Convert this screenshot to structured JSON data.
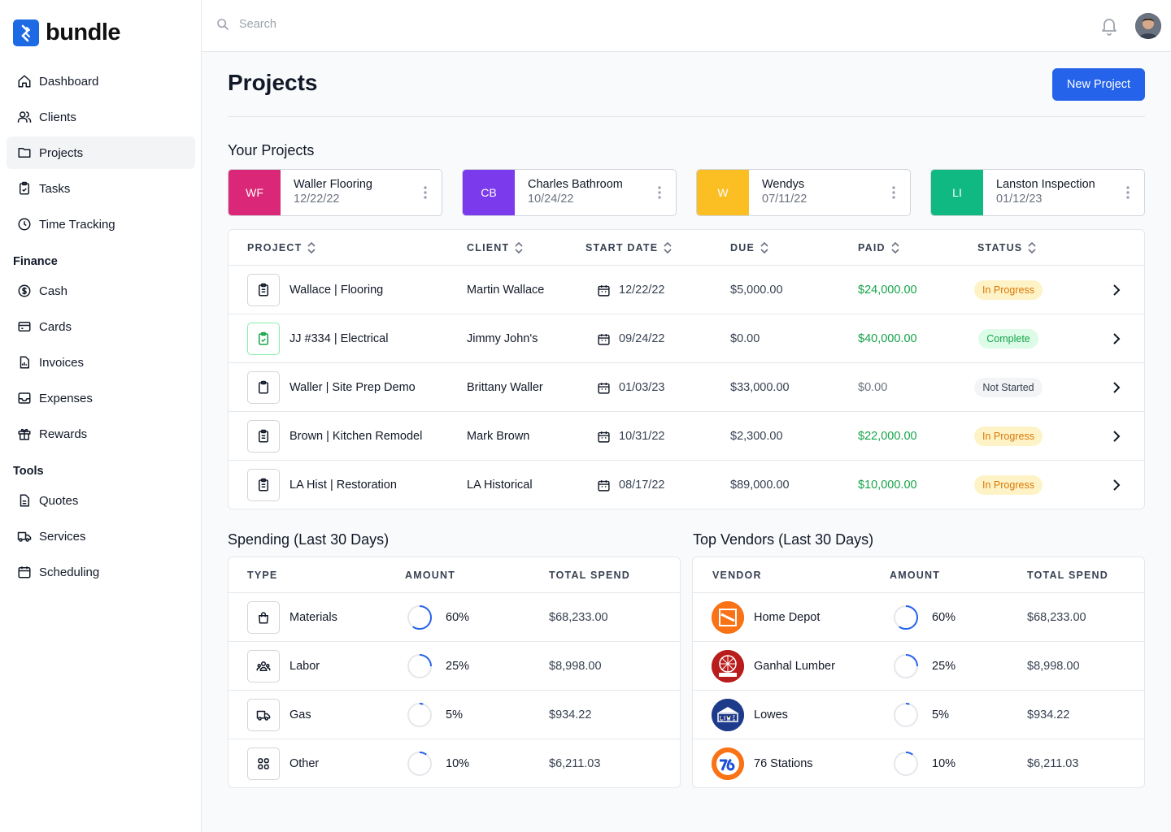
{
  "brand": {
    "name": "bundle",
    "accent": "#2563EB"
  },
  "search": {
    "placeholder": "Search"
  },
  "nav": {
    "main": [
      {
        "label": "Dashboard",
        "icon": "home-icon"
      },
      {
        "label": "Clients",
        "icon": "users-icon"
      },
      {
        "label": "Projects",
        "icon": "folder-icon",
        "active": true
      },
      {
        "label": "Tasks",
        "icon": "clipboard-icon"
      },
      {
        "label": "Time Tracking",
        "icon": "clock-icon"
      }
    ],
    "finance_label": "Finance",
    "finance": [
      {
        "label": "Cash",
        "icon": "dollar-icon"
      },
      {
        "label": "Cards",
        "icon": "credit-card-icon"
      },
      {
        "label": "Invoices",
        "icon": "invoice-icon"
      },
      {
        "label": "Expenses",
        "icon": "inbox-icon"
      },
      {
        "label": "Rewards",
        "icon": "gift-icon"
      }
    ],
    "tools_label": "Tools",
    "tools": [
      {
        "label": "Quotes",
        "icon": "document-icon"
      },
      {
        "label": "Services",
        "icon": "truck-icon"
      },
      {
        "label": "Scheduling",
        "icon": "calendar-icon"
      }
    ]
  },
  "page": {
    "title": "Projects",
    "new_button": "New Project"
  },
  "your_projects": {
    "title": "Your Projects",
    "cards": [
      {
        "initials": "WF",
        "name": "Waller Flooring",
        "date": "12/22/22",
        "color": "#DB2777"
      },
      {
        "initials": "CB",
        "name": "Charles Bathroom",
        "date": "10/24/22",
        "color": "#7C3AED"
      },
      {
        "initials": "W",
        "name": "Wendys",
        "date": "07/11/22",
        "color": "#FBBF24"
      },
      {
        "initials": "LI",
        "name": "Lanston Inspection",
        "date": "01/12/23",
        "color": "#10B981"
      }
    ]
  },
  "projects_table": {
    "headers": {
      "project": "PROJECT",
      "client": "CLIENT",
      "start_date": "START DATE",
      "due": "DUE",
      "paid": "PAID",
      "status": "STATUS"
    },
    "rows": [
      {
        "project": "Wallace | Flooring",
        "client": "Martin Wallace",
        "start": "12/22/22",
        "due": "$5,000.00",
        "paid": "$24,000.00",
        "paid_style": "green",
        "status": "In Progress",
        "status_style": "in-progress",
        "icon_style": "default"
      },
      {
        "project": "JJ #334 | Electrical",
        "client": "Jimmy John's",
        "start": "09/24/22",
        "due": "$0.00",
        "paid": "$40,000.00",
        "paid_style": "green",
        "status": "Complete",
        "status_style": "complete",
        "icon_style": "green"
      },
      {
        "project": "Waller | Site Prep Demo",
        "client": "Brittany Waller",
        "start": "01/03/23",
        "due": "$33,000.00",
        "paid": "$0.00",
        "paid_style": "gray",
        "status": "Not Started",
        "status_style": "not-started",
        "icon_style": "empty"
      },
      {
        "project": "Brown | Kitchen Remodel",
        "client": "Mark Brown",
        "start": "10/31/22",
        "due": "$2,300.00",
        "paid": "$22,000.00",
        "paid_style": "green",
        "status": "In Progress",
        "status_style": "in-progress",
        "icon_style": "default"
      },
      {
        "project": "LA Hist | Restoration",
        "client": "LA Historical",
        "start": "08/17/22",
        "due": "$89,000.00",
        "paid": "$10,000.00",
        "paid_style": "green",
        "status": "In Progress",
        "status_style": "in-progress",
        "icon_style": "default"
      }
    ]
  },
  "spending": {
    "title": "Spending (Last 30 Days)",
    "headers": {
      "type": "TYPE",
      "amount": "AMOUNT",
      "total": "TOTAL SPEND"
    },
    "rows": [
      {
        "type": "Materials",
        "icon": "shopping-bag-icon",
        "amount": "60%",
        "fraction": 0.6,
        "total": "$68,233.00"
      },
      {
        "type": "Labor",
        "icon": "users-group-icon",
        "amount": "25%",
        "fraction": 0.25,
        "total": "$8,998.00"
      },
      {
        "type": "Gas",
        "icon": "truck-icon",
        "amount": "5%",
        "fraction": 0.05,
        "total": "$934.22"
      },
      {
        "type": "Other",
        "icon": "grid-icon",
        "amount": "10%",
        "fraction": 0.1,
        "total": "$6,211.03"
      }
    ]
  },
  "vendors": {
    "title": "Top Vendors (Last 30 Days)",
    "headers": {
      "vendor": "VENDOR",
      "amount": "AMOUNT",
      "total": "TOTAL SPEND"
    },
    "rows": [
      {
        "vendor": "Home Depot",
        "logo_text": "THE HOME DEPOT",
        "logo_color": "#F97316",
        "amount": "60%",
        "fraction": 0.6,
        "total": "$68,233.00"
      },
      {
        "vendor": "Ganhal Lumber",
        "logo_text": "GANHAL LUMBER",
        "logo_color": "#B91C1C",
        "amount": "25%",
        "fraction": 0.25,
        "total": "$8,998.00"
      },
      {
        "vendor": "Lowes",
        "logo_text": "LOWE'S",
        "logo_color": "#1E3A8A",
        "amount": "5%",
        "fraction": 0.05,
        "total": "$934.22"
      },
      {
        "vendor": "76 Stations",
        "logo_text": "76",
        "logo_color": "#F97316",
        "amount": "10%",
        "fraction": 0.1,
        "total": "$6,211.03"
      }
    ]
  }
}
